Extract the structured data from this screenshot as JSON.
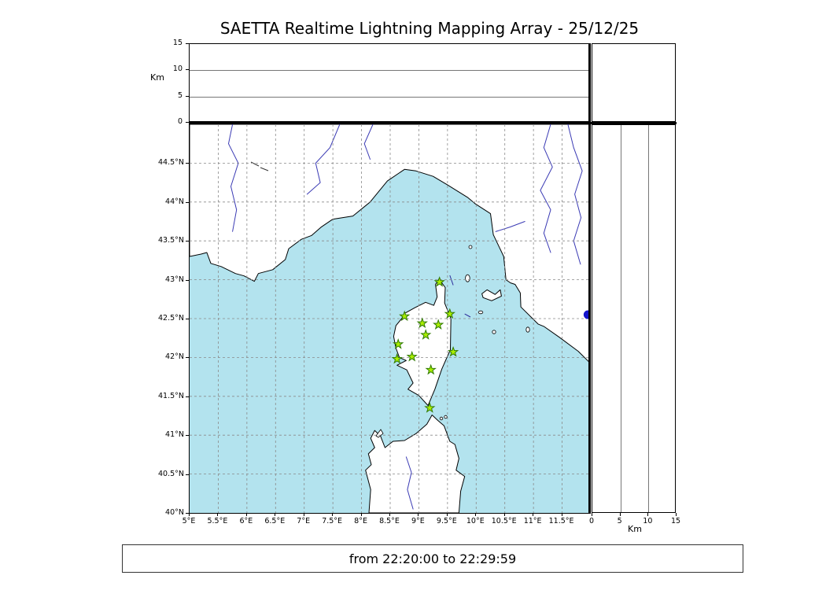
{
  "title": "SAETTA Realtime Lightning Mapping Array - 25/12/25",
  "footer": {
    "time_range": "from 22:20:00 to 22:29:59"
  },
  "axes": {
    "altitude_km": {
      "label": "Km",
      "ticks": [
        0,
        5,
        10,
        15
      ],
      "min": 0,
      "max": 15
    },
    "longitude": {
      "min": 5,
      "max": 12,
      "tick_step": 0.5,
      "tick_labels": [
        "5°E",
        "5.5°E",
        "6°E",
        "6.5°E",
        "7°E",
        "7.5°E",
        "8°E",
        "8.5°E",
        "9°E",
        "9.5°E",
        "10°E",
        "10.5°E",
        "11°E",
        "11.5°E"
      ]
    },
    "latitude": {
      "min": 40,
      "max": 45,
      "tick_step": 0.5,
      "tick_labels": [
        "40°N",
        "40.5°N",
        "41°N",
        "41.5°N",
        "42°N",
        "42.5°N",
        "43°N",
        "43.5°N",
        "44°N",
        "44.5°N"
      ]
    }
  },
  "chart_data": {
    "type": "scatter",
    "title": "SAETTA Realtime Lightning Mapping Array - 25/12/25",
    "subtitle": "from 22:20:00 to 22:29:59",
    "layout": "geographic map (5-12°E, 40-45°N) with empty altitude-vs-longitude top panel and empty altitude-vs-latitude right panel, 0-15 km",
    "map_extent": {
      "lon": [
        5,
        12
      ],
      "lat": [
        40,
        45
      ]
    },
    "altitude_extent_km": [
      0,
      15
    ],
    "grid": "dashed 0.5 degree graticule",
    "stations_marker": "green star (LMA station on Corsica)",
    "stations": [
      {
        "lon": 9.36,
        "lat": 42.97
      },
      {
        "lon": 8.75,
        "lat": 42.53
      },
      {
        "lon": 9.06,
        "lat": 42.44
      },
      {
        "lon": 9.34,
        "lat": 42.42
      },
      {
        "lon": 9.54,
        "lat": 42.56
      },
      {
        "lon": 9.12,
        "lat": 42.29
      },
      {
        "lon": 8.64,
        "lat": 42.17
      },
      {
        "lon": 9.6,
        "lat": 42.07
      },
      {
        "lon": 8.62,
        "lat": 41.98
      },
      {
        "lon": 8.88,
        "lat": 42.01
      },
      {
        "lon": 9.21,
        "lat": 41.84
      },
      {
        "lon": 9.19,
        "lat": 41.35
      }
    ],
    "event_marker": {
      "lon": 11.95,
      "lat": 42.55,
      "shape": "filled circle"
    }
  },
  "colors": {
    "sea": "#b3e3ee",
    "land": "#ffffff",
    "coastline": "#000000",
    "river": "#3a3ab4",
    "graticule": "#8a8a8a",
    "station_fill": "#aaee00",
    "station_edge": "#2f7a00",
    "event_marker": "#1212cc",
    "frame": "#000000"
  }
}
